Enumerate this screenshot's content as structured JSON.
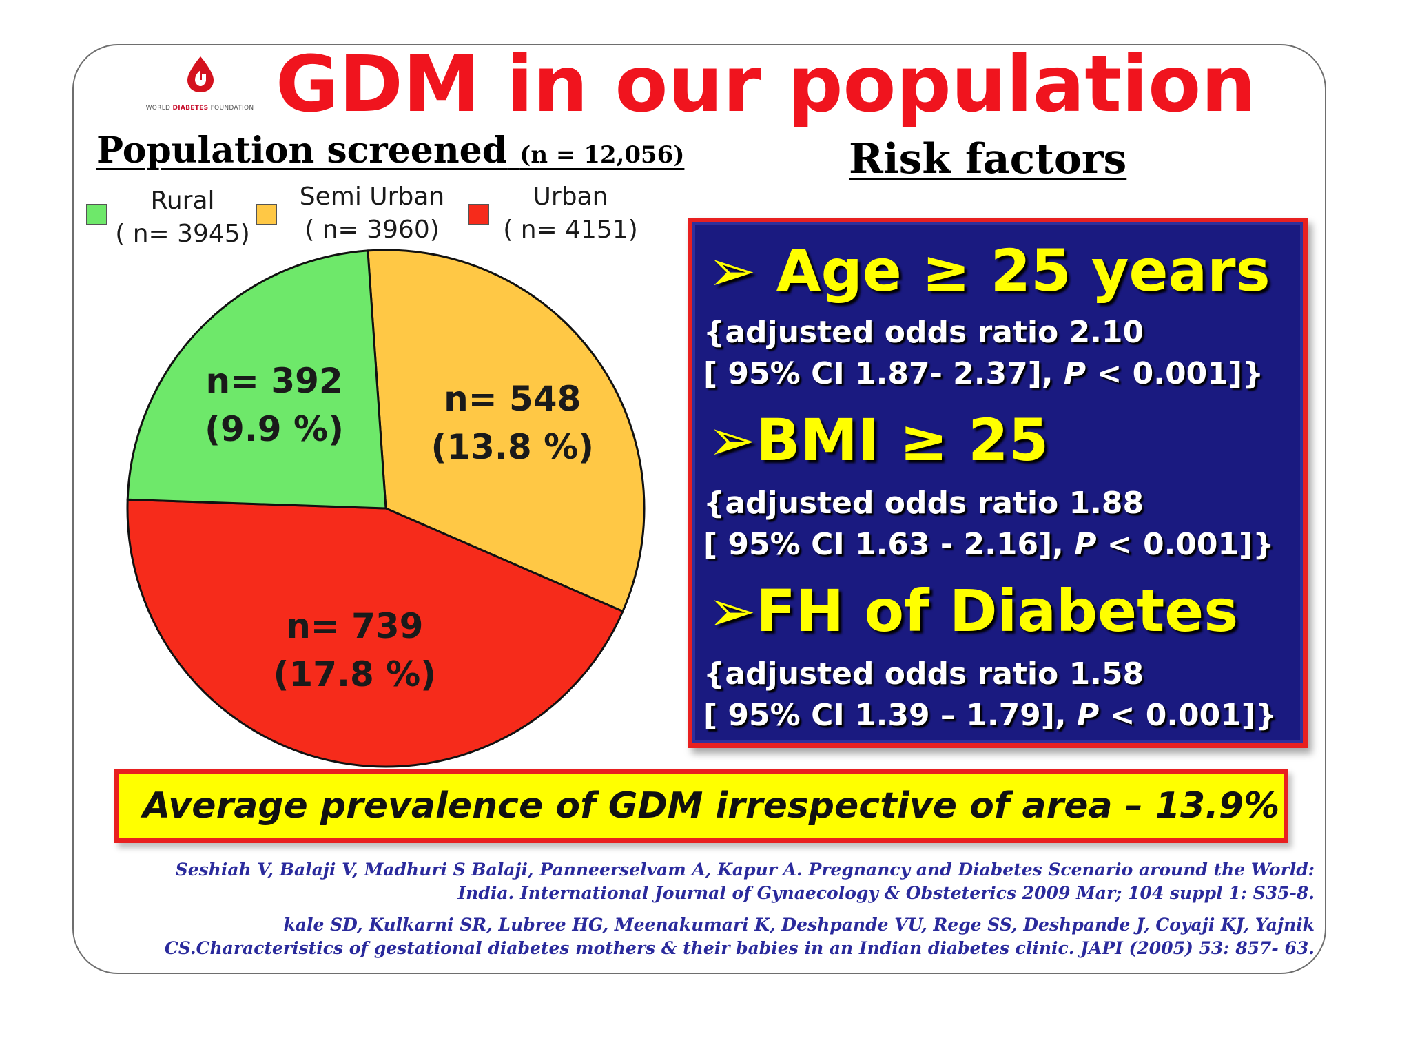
{
  "slide": {
    "title": "GDM in our population",
    "logo": {
      "icon": "blood-drop-icon",
      "text_pre": "WORLD ",
      "text_mid": "DIABETES",
      "text_post": " FOUNDATION"
    }
  },
  "population": {
    "heading": "Population screened",
    "n_note": "(n = 12,056)"
  },
  "legend": [
    {
      "name": "Rural",
      "n": "( n= 3945)",
      "color": "#6ee86a"
    },
    {
      "name": "Semi Urban",
      "n": "( n= 3960)",
      "color": "#ffc845"
    },
    {
      "name": "Urban",
      "n": "( n= 4151)",
      "color": "#f62b1b"
    }
  ],
  "chart_data": {
    "type": "pie",
    "slices": [
      {
        "category": "Rural",
        "value": 392,
        "label_n": "n= 392",
        "label_pct": "(9.9 %)",
        "color": "#6ee86a"
      },
      {
        "category": "Semi Urban",
        "value": 548,
        "label_n": "n= 548",
        "label_pct": "(13.8 %)",
        "color": "#ffc845"
      },
      {
        "category": "Urban",
        "value": 739,
        "label_n": "n= 739",
        "label_pct": "(17.8 %)",
        "color": "#f62b1b"
      }
    ]
  },
  "risk": {
    "heading": "Risk factors",
    "items": [
      {
        "arrow": "➢",
        "title": "Age ≥ 25 years",
        "line1": "{adjusted odds ratio 2.10",
        "line2_pre": "[ 95% CI 1.87- 2.37], ",
        "line2_p": "P",
        "line2_post": " < 0.001]}"
      },
      {
        "arrow": "➢",
        "title": "BMI ≥ 25",
        "line1": "{adjusted odds ratio 1.88",
        "line2_pre": "[ 95% CI 1.63 - 2.16], ",
        "line2_p": "P",
        "line2_post": " < 0.001]}"
      },
      {
        "arrow": "➢",
        "title": "FH of Diabetes",
        "line1": "{adjusted odds ratio 1.58",
        "line2_pre": "[ 95% CI 1.39 – 1.79], ",
        "line2_p": "P",
        "line2_post": " < 0.001]}"
      }
    ]
  },
  "prevalence": "Average prevalence of GDM irrespective of area – 13.9%",
  "references": [
    "Seshiah V, Balaji V, Madhuri S Balaji, Panneerselvam A, Kapur A. Pregnancy and Diabetes Scenario around the World:",
    "India. International Journal of Gynaecology & Obsteterics 2009 Mar; 104 suppl 1: S35-8.",
    "kale SD, Kulkarni SR, Lubree HG, Meenakumari K, Deshpande VU, Rege SS, Deshpande J, Coyaji KJ, Yajnik",
    "CS.Characteristics of gestational diabetes mothers & their babies in an Indian diabetes clinic. JAPI (2005) 53: 857- 63."
  ]
}
